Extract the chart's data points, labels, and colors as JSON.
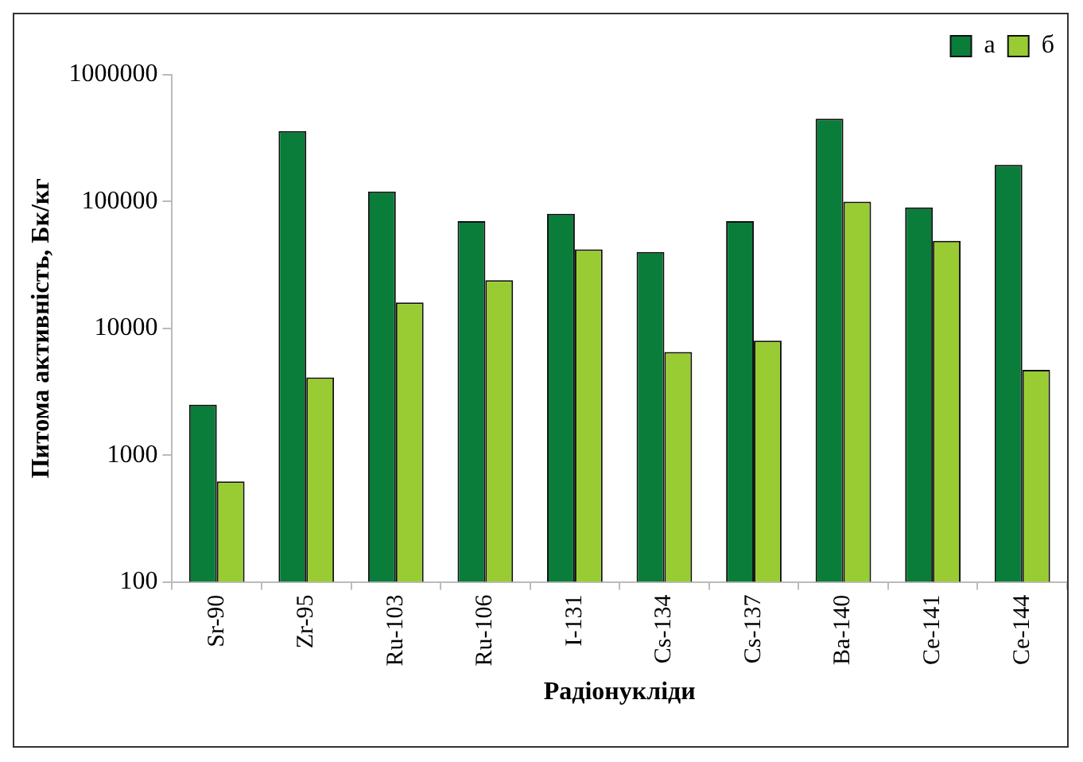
{
  "chart_data": {
    "type": "bar",
    "xlabel": "Радіонукліди",
    "ylabel": "Питома активність, Бк/кг",
    "categories": [
      "Sr-90",
      "Zr-95",
      "Ru-103",
      "Ru-106",
      "I-131",
      "Cs-134",
      "Cs-137",
      "Ba-140",
      "Ce-141",
      "Ce-144"
    ],
    "series": [
      {
        "name": "а",
        "color": "#0a7d3a",
        "values": [
          2500,
          360000,
          120000,
          70000,
          80000,
          40000,
          70000,
          450000,
          90000,
          195000
        ]
      },
      {
        "name": "б",
        "color": "#99cc33",
        "values": [
          620,
          4100,
          16000,
          24000,
          42000,
          6500,
          8000,
          100000,
          49000,
          4700
        ]
      }
    ],
    "log": "y",
    "ylim": [
      100,
      1000000
    ],
    "yticks": [
      100,
      1000,
      10000,
      100000,
      1000000
    ],
    "grid": false,
    "legend": "top right"
  }
}
